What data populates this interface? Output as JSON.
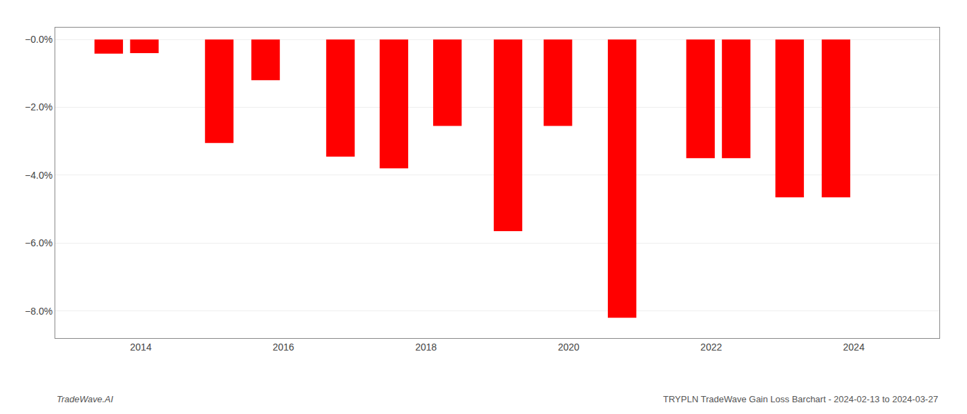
{
  "chart_data": {
    "type": "bar",
    "x": [
      2013.55,
      2014.05,
      2015.1,
      2015.75,
      2016.8,
      2017.55,
      2018.3,
      2019.15,
      2019.85,
      2020.75,
      2021.85,
      2022.35,
      2023.1,
      2023.75
    ],
    "values": [
      -0.42,
      -0.4,
      -3.05,
      -1.2,
      -3.45,
      -3.8,
      -2.55,
      -5.65,
      -2.55,
      -8.2,
      -3.5,
      -3.5,
      -4.65,
      -4.65
    ],
    "color": "#ff0000",
    "xlim": [
      2012.8,
      2025.2
    ],
    "xticks": [
      2014,
      2016,
      2018,
      2020,
      2022,
      2024
    ],
    "ylim": [
      -8.8,
      0.35
    ],
    "yticks": [
      {
        "value": 0.0,
        "label": "−0.0%"
      },
      {
        "value": -2.0,
        "label": "−2.0%"
      },
      {
        "value": -4.0,
        "label": "−4.0%"
      },
      {
        "value": -6.0,
        "label": "−6.0%"
      },
      {
        "value": -8.0,
        "label": "−8.0%"
      }
    ],
    "grid": true,
    "annotations": [
      "TradeWave.AI",
      "TRYPLN TradeWave Gain Loss Barchart - 2024-02-13 to 2024-03-27"
    ]
  }
}
